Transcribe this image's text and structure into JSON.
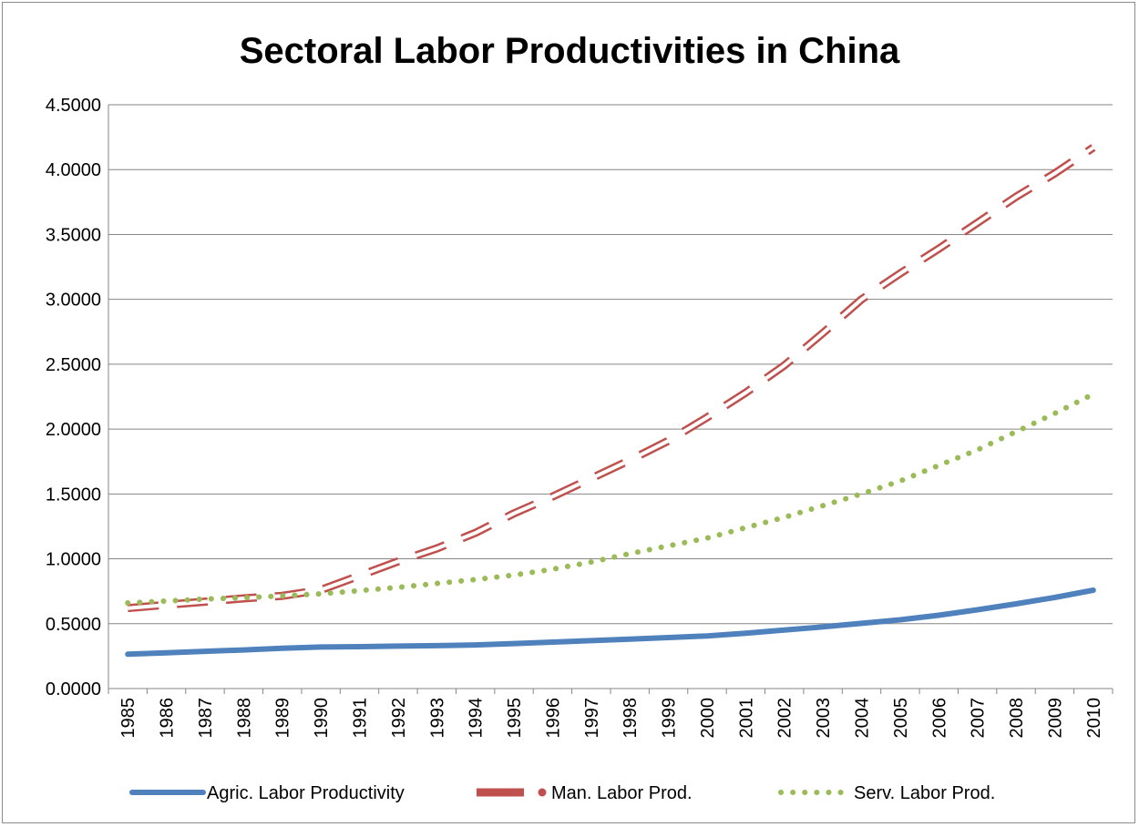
{
  "chart_data": {
    "type": "line",
    "title": "Sectoral Labor Productivities in China",
    "xlabel": "",
    "ylabel": "",
    "ylim": [
      0,
      4.5
    ],
    "y_ticks": [
      "0.0000",
      "0.5000",
      "1.0000",
      "1.5000",
      "2.0000",
      "2.5000",
      "3.0000",
      "3.5000",
      "4.0000",
      "4.5000"
    ],
    "categories": [
      "1985",
      "1986",
      "1987",
      "1988",
      "1989",
      "1990",
      "1991",
      "1992",
      "1993",
      "1994",
      "1995",
      "1996",
      "1997",
      "1998",
      "1999",
      "2000",
      "2001",
      "2002",
      "2003",
      "2004",
      "2005",
      "2006",
      "2007",
      "2008",
      "2009",
      "2010"
    ],
    "grid": true,
    "legend_position": "bottom",
    "series": [
      {
        "name": "Agric. Labor Productivity",
        "style": "solid",
        "color": "#4f81bd",
        "values": [
          0.265,
          0.275,
          0.287,
          0.298,
          0.31,
          0.32,
          0.323,
          0.327,
          0.331,
          0.336,
          0.347,
          0.358,
          0.369,
          0.381,
          0.393,
          0.406,
          0.427,
          0.451,
          0.475,
          0.503,
          0.53,
          0.565,
          0.607,
          0.653,
          0.702,
          0.758
        ]
      },
      {
        "name": "Man. Labor Prod.",
        "style": "dashed",
        "color": "#c0504d",
        "values": [
          0.62,
          0.645,
          0.67,
          0.695,
          0.715,
          0.76,
          0.87,
          0.98,
          1.08,
          1.2,
          1.35,
          1.48,
          1.62,
          1.76,
          1.91,
          2.09,
          2.28,
          2.49,
          2.74,
          3.0,
          3.2,
          3.39,
          3.59,
          3.79,
          3.97,
          4.17
        ]
      },
      {
        "name": "Serv. Labor Prod.",
        "style": "dotted",
        "color": "#9bbb59",
        "values": [
          0.66,
          0.675,
          0.69,
          0.7,
          0.715,
          0.73,
          0.755,
          0.78,
          0.81,
          0.84,
          0.875,
          0.92,
          0.975,
          1.04,
          1.1,
          1.16,
          1.24,
          1.32,
          1.41,
          1.5,
          1.6,
          1.72,
          1.84,
          1.98,
          2.12,
          2.27
        ]
      }
    ]
  }
}
